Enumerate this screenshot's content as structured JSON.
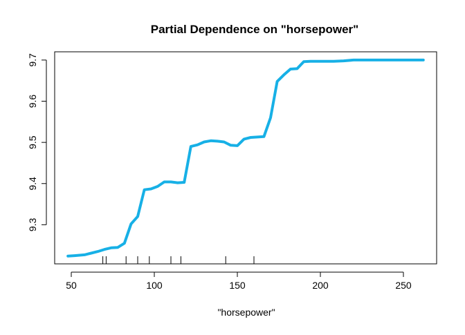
{
  "chart_data": {
    "type": "line",
    "title": "Partial Dependence on \"horsepower\"",
    "xlabel": "\"horsepower\"",
    "ylabel": "",
    "xlim": [
      40,
      270
    ],
    "ylim": [
      9.205,
      9.72
    ],
    "xticks": [
      50,
      100,
      150,
      200,
      250
    ],
    "yticks": [
      9.3,
      9.4,
      9.5,
      9.6,
      9.7
    ],
    "xtick_labels": [
      "50",
      "100",
      "150",
      "200",
      "250"
    ],
    "ytick_labels": [
      "9.3",
      "9.4",
      "9.5",
      "9.6",
      "9.7"
    ],
    "line_color": "#17b0e6",
    "grid": false,
    "rug_x": [
      69,
      71,
      83,
      90,
      97,
      110,
      116,
      143,
      160
    ],
    "series": [
      {
        "x": [
          48,
          52,
          58,
          62,
          66,
          70,
          74,
          78,
          82,
          86,
          90,
          94,
          98,
          102,
          106,
          110,
          114,
          118,
          122,
          126,
          130,
          134,
          138,
          142,
          146,
          150,
          154,
          158,
          162,
          166,
          170,
          174,
          178,
          182,
          186,
          190,
          194,
          198,
          202,
          208,
          214,
          220,
          226,
          232,
          240,
          248,
          256,
          262
        ],
        "y": [
          9.224,
          9.225,
          9.227,
          9.231,
          9.235,
          9.24,
          9.244,
          9.245,
          9.255,
          9.302,
          9.32,
          9.385,
          9.387,
          9.393,
          9.404,
          9.404,
          9.402,
          9.403,
          9.49,
          9.494,
          9.501,
          9.504,
          9.503,
          9.501,
          9.493,
          9.492,
          9.508,
          9.512,
          9.513,
          9.514,
          9.56,
          9.648,
          9.664,
          9.678,
          9.679,
          9.696,
          9.697,
          9.697,
          9.697,
          9.697,
          9.698,
          9.7,
          9.7,
          9.7,
          9.7,
          9.7,
          9.7,
          9.7
        ]
      }
    ]
  }
}
